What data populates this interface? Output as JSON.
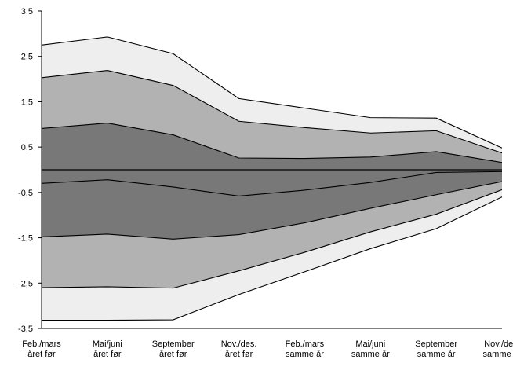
{
  "chart_data": {
    "type": "area",
    "title": "",
    "xlabel": "",
    "ylabel": "",
    "categories": [
      [
        "Feb./mars",
        "året før"
      ],
      [
        "Mai/juni",
        "året før"
      ],
      [
        "September",
        "året før"
      ],
      [
        "Nov./des.",
        "året før"
      ],
      [
        "Feb./mars",
        "samme år"
      ],
      [
        "Mai/juni",
        "samme år"
      ],
      [
        "September",
        "samme år"
      ],
      [
        "Nov./des.",
        "samme år"
      ]
    ],
    "ylim": [
      -3.5,
      3.5
    ],
    "yticks": [
      3.5,
      2.5,
      1.5,
      0.5,
      -0.5,
      -1.5,
      -2.5,
      -3.5
    ],
    "ytick_labels": [
      "3,5",
      "2,5",
      "1,5",
      "0,5",
      "-0,5",
      "-1,5",
      "-2,5",
      "-3,5"
    ],
    "bands": {
      "upper_outer": [
        2.75,
        2.93,
        2.56,
        1.57,
        1.36,
        1.15,
        1.14,
        0.48
      ],
      "upper_middle": [
        2.03,
        2.19,
        1.86,
        1.07,
        0.93,
        0.81,
        0.86,
        0.37
      ],
      "upper_inner": [
        0.91,
        1.03,
        0.77,
        0.26,
        0.25,
        0.28,
        0.4,
        0.16
      ],
      "lower_inner": [
        -0.3,
        -0.22,
        -0.38,
        -0.58,
        -0.45,
        -0.28,
        -0.06,
        -0.04
      ],
      "lower_middle": [
        -1.48,
        -1.42,
        -1.53,
        -1.43,
        -1.17,
        -0.85,
        -0.55,
        -0.26
      ],
      "lower_outer_1": [
        -2.6,
        -2.58,
        -2.61,
        -2.23,
        -1.82,
        -1.37,
        -0.98,
        -0.44
      ],
      "lower_outer_2": [
        -3.32,
        -3.32,
        -3.31,
        -2.75,
        -2.25,
        -1.74,
        -1.3,
        -0.6
      ]
    },
    "colors": {
      "outer": "#eeeeee",
      "middle": "#b2b2b2",
      "inner": "#787878",
      "line": "#000000"
    },
    "grid": false,
    "legend": "none"
  }
}
